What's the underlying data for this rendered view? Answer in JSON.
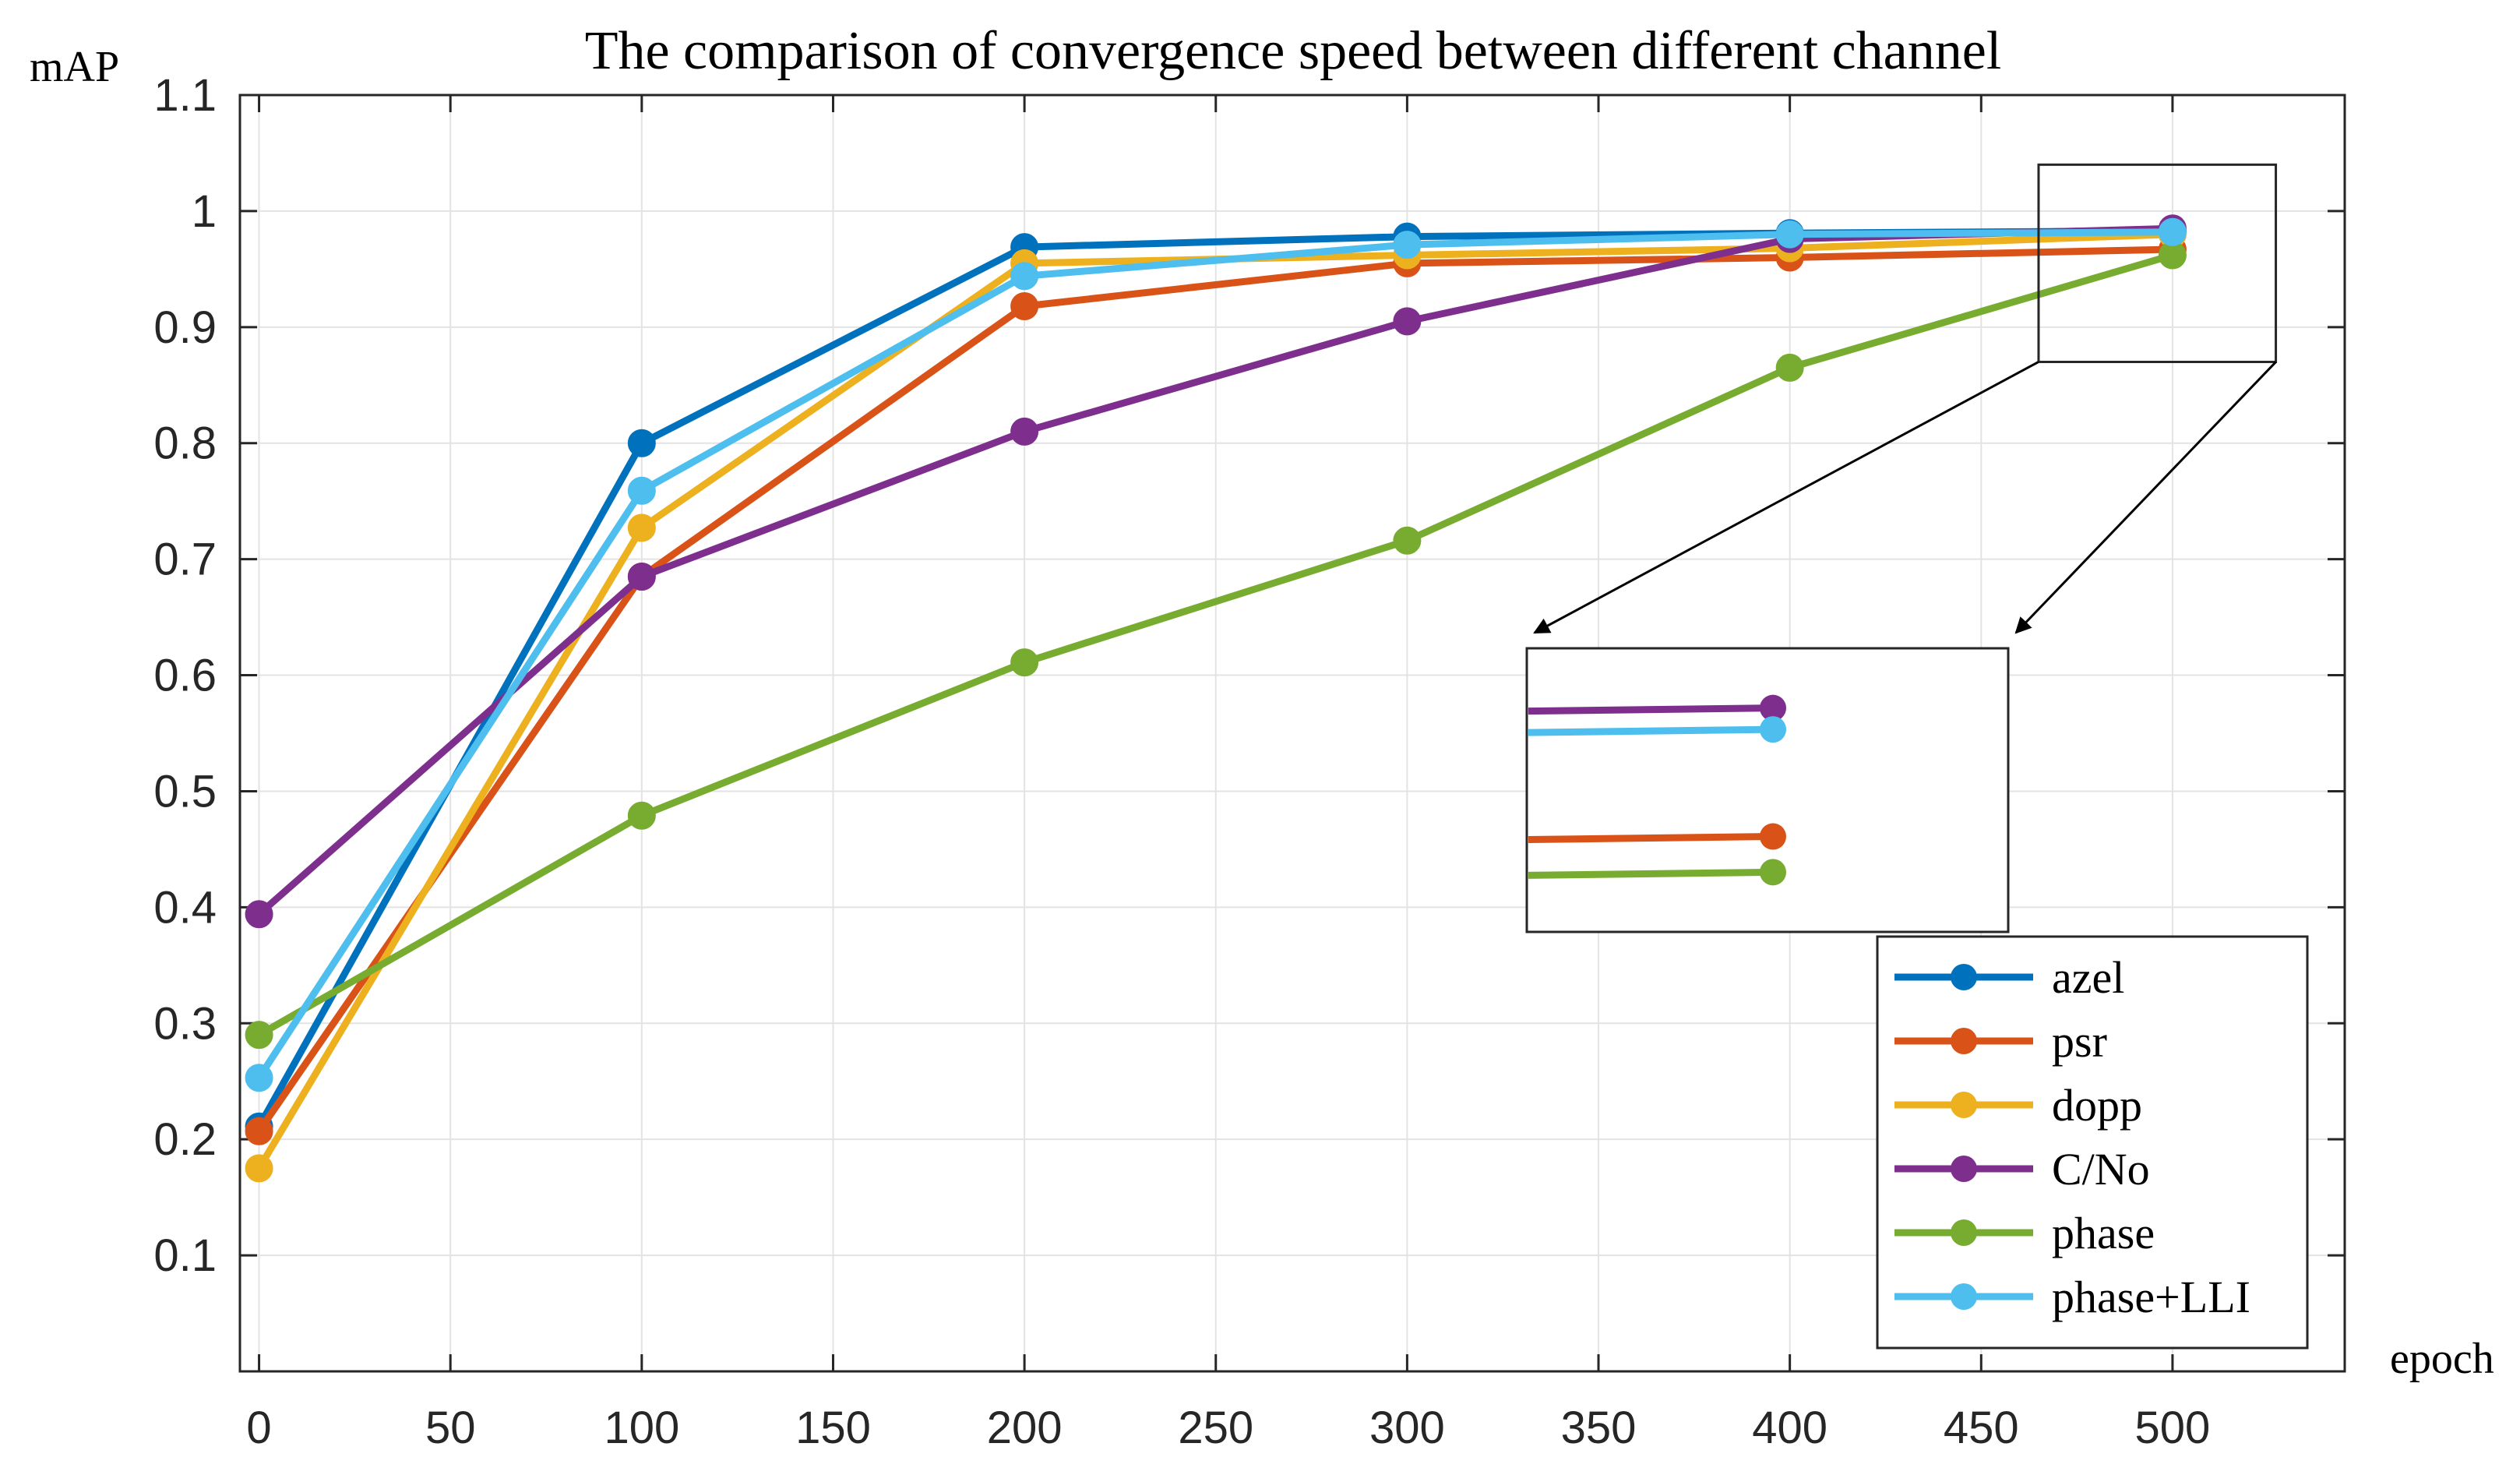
{
  "chart_data": {
    "type": "line",
    "title": "The comparison of convergence speed between different channel",
    "xlabel": "epoch",
    "ylabel": "mAP",
    "x": [
      0,
      100,
      200,
      300,
      400,
      500
    ],
    "xlim": [
      -5,
      545
    ],
    "ylim": [
      0,
      1.1
    ],
    "xticks": [
      0,
      50,
      100,
      150,
      200,
      250,
      300,
      350,
      400,
      450,
      500
    ],
    "yticks": [
      0.1,
      0.2,
      0.3,
      0.4,
      0.5,
      0.6,
      0.7,
      0.8,
      0.9,
      1,
      1.1
    ],
    "grid": true,
    "legend_position": "bottom-right",
    "series": [
      {
        "name": "azel",
        "color": "#0072BD",
        "values": [
          0.211,
          0.8,
          0.969,
          0.978,
          0.981,
          0.983
        ]
      },
      {
        "name": "psr",
        "color": "#D95319",
        "values": [
          0.207,
          0.685,
          0.918,
          0.955,
          0.96,
          0.967
        ]
      },
      {
        "name": "dopp",
        "color": "#EDB120",
        "values": [
          0.175,
          0.727,
          0.955,
          0.962,
          0.968,
          0.98
        ]
      },
      {
        "name": "C/No",
        "color": "#7E2F8E",
        "values": [
          0.394,
          0.685,
          0.81,
          0.905,
          0.976,
          0.985
        ]
      },
      {
        "name": "phase",
        "color": "#77AC30",
        "values": [
          0.29,
          0.479,
          0.611,
          0.716,
          0.865,
          0.962
        ]
      },
      {
        "name": "phase+LLI",
        "color": "#4DBEEE",
        "values": [
          0.253,
          0.759,
          0.944,
          0.971,
          0.98,
          0.982
        ]
      }
    ],
    "annotations": {
      "zoom_region": {
        "x_range": [
          465,
          527
        ],
        "y_range": [
          0.87,
          1.04
        ]
      },
      "inset_series_order": [
        "C/No",
        "phase+LLI",
        "psr",
        "phase"
      ]
    }
  }
}
